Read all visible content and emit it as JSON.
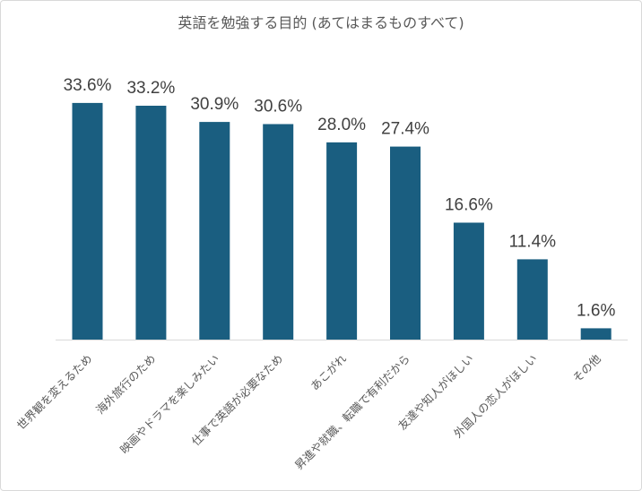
{
  "chart_data": {
    "type": "bar",
    "title": "英語を勉強する目的 (あてはまるものすべて)",
    "xlabel": "",
    "ylabel": "",
    "ylim": [
      0,
      35
    ],
    "grid": false,
    "legend": "none",
    "categories": [
      "世界観を変えるため",
      "海外旅行のため",
      "映画やドラマを楽しみたい",
      "仕事で英語が必要なため",
      "あこがれ",
      "昇進や就職、転職で有利だから",
      "友達や知人がほしい",
      "外国人の恋人がほしい",
      "その他"
    ],
    "values": [
      33.6,
      33.2,
      30.9,
      30.6,
      28.0,
      27.4,
      16.6,
      11.4,
      1.6
    ],
    "data_labels": [
      "33.6%",
      "33.2%",
      "30.9%",
      "30.6%",
      "28.0%",
      "27.4%",
      "16.6%",
      "11.4%",
      "1.6%"
    ],
    "bar_color": "#1a5e80",
    "axis_color": "#d9d9d9"
  }
}
